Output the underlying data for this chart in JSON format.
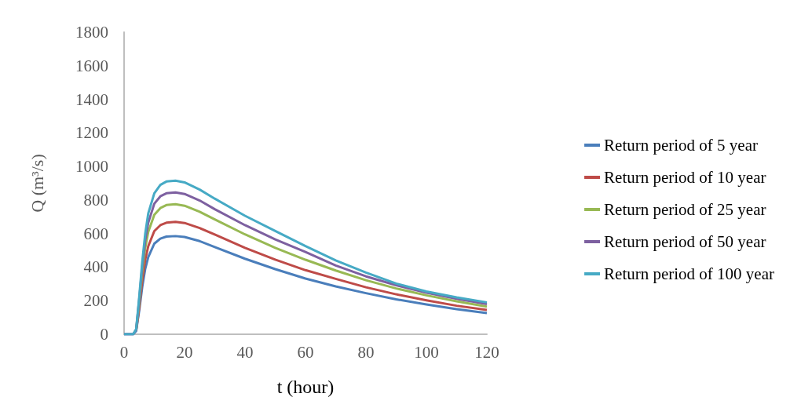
{
  "chart_data": {
    "type": "line",
    "xlabel": "t (hour)",
    "ylabel": "Q (m³/s)",
    "x": [
      0,
      2,
      3,
      4,
      5,
      6,
      7,
      8,
      10,
      12,
      14,
      17,
      20,
      25,
      30,
      40,
      50,
      60,
      70,
      80,
      90,
      100,
      110,
      120
    ],
    "xlim": [
      0,
      120
    ],
    "xticks": [
      0,
      20,
      40,
      60,
      80,
      100,
      120
    ],
    "ylim": [
      0,
      1800
    ],
    "yticks": [
      0,
      200,
      400,
      600,
      800,
      1000,
      1200,
      1400,
      1600,
      1800
    ],
    "grid": false,
    "legend": "right",
    "marker": "none",
    "line_style": "solid",
    "series": [
      {
        "name": "Return period of 5 year",
        "color": "#4a7ebb",
        "values": [
          0,
          0,
          0,
          20,
          140,
          280,
          390,
          460,
          540,
          570,
          582,
          585,
          580,
          555,
          520,
          450,
          388,
          332,
          285,
          245,
          208,
          178,
          150,
          126
        ]
      },
      {
        "name": "Return period of 10 year",
        "color": "#be4b48",
        "values": [
          null,
          null,
          null,
          22,
          160,
          320,
          445,
          525,
          615,
          650,
          665,
          670,
          663,
          633,
          594,
          515,
          445,
          382,
          330,
          280,
          238,
          202,
          170,
          145
        ]
      },
      {
        "name": "Return period of 25 year",
        "color": "#98b954",
        "values": [
          null,
          null,
          null,
          25,
          185,
          370,
          515,
          610,
          712,
          752,
          770,
          775,
          766,
          730,
          684,
          595,
          515,
          444,
          380,
          322,
          273,
          232,
          196,
          165
        ]
      },
      {
        "name": "Return period of 50 year",
        "color": "#7d60a0",
        "values": [
          0,
          0,
          0,
          28,
          205,
          400,
          560,
          665,
          778,
          822,
          840,
          845,
          836,
          797,
          745,
          650,
          565,
          490,
          410,
          345,
          292,
          248,
          212,
          180
        ]
      },
      {
        "name": "Return period of 100 year",
        "color": "#46aac5",
        "values": [
          0,
          0,
          0,
          30,
          220,
          430,
          600,
          720,
          840,
          890,
          910,
          915,
          905,
          862,
          808,
          706,
          615,
          525,
          440,
          368,
          302,
          255,
          220,
          190
        ]
      }
    ]
  }
}
